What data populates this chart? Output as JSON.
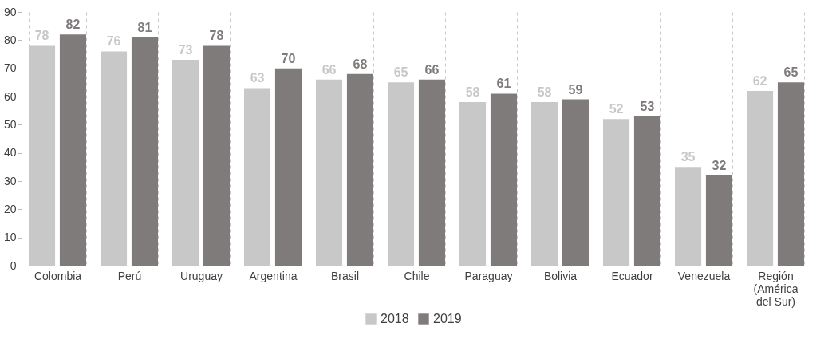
{
  "chart_data": {
    "type": "bar",
    "categories": [
      "Colombia",
      "Perú",
      "Uruguay",
      "Argentina",
      "Brasil",
      "Chile",
      "Paraguay",
      "Bolivia",
      "Ecuador",
      "Venezuela",
      "Región (América del Sur)"
    ],
    "series": [
      {
        "name": "2018",
        "color": "#c8c8c8",
        "values": [
          78,
          76,
          73,
          63,
          66,
          65,
          58,
          58,
          52,
          35,
          62
        ]
      },
      {
        "name": "2019",
        "color": "#807b7b",
        "values": [
          82,
          81,
          78,
          70,
          68,
          66,
          61,
          59,
          53,
          32,
          65
        ]
      }
    ],
    "ylim": [
      0,
      90
    ],
    "yticks": [
      0,
      10,
      20,
      30,
      40,
      50,
      60,
      70,
      80,
      90
    ],
    "grid": "x",
    "legend": "bottom",
    "data_labels": true
  }
}
